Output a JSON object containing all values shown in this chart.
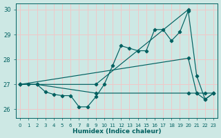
{
  "xlabel": "Humidex (Indice chaleur)",
  "xlim": [
    -0.5,
    23.5
  ],
  "ylim": [
    25.65,
    30.25
  ],
  "yticks": [
    26,
    27,
    28,
    29,
    30
  ],
  "xticks": [
    0,
    1,
    2,
    3,
    4,
    5,
    6,
    7,
    8,
    9,
    10,
    11,
    12,
    13,
    14,
    15,
    16,
    17,
    18,
    19,
    20,
    21,
    22,
    23
  ],
  "background_color": "#cde8e4",
  "grid_color": "#f0c8c8",
  "line_color": "#006060",
  "line1_x": [
    0,
    1,
    2,
    3,
    4,
    5,
    6,
    7,
    8,
    9,
    10,
    11,
    12,
    13,
    14,
    15,
    16,
    17,
    18,
    19,
    20,
    21,
    22,
    23
  ],
  "line1_y": [
    27.0,
    27.0,
    27.0,
    26.7,
    26.6,
    26.55,
    26.55,
    26.1,
    26.1,
    26.5,
    27.0,
    27.75,
    28.55,
    28.45,
    28.35,
    28.35,
    29.2,
    29.2,
    28.75,
    29.1,
    29.95,
    27.35,
    26.4,
    26.65
  ],
  "line2_x": [
    0,
    2,
    9,
    20
  ],
  "line2_y": [
    27.0,
    27.0,
    27.0,
    30.0
  ],
  "line3_x": [
    0,
    2,
    9,
    20,
    21,
    22,
    23
  ],
  "line3_y": [
    27.0,
    27.0,
    26.65,
    26.65,
    26.65,
    26.4,
    26.65
  ],
  "line4_x": [
    0,
    20,
    21,
    22,
    23
  ],
  "line4_y": [
    27.0,
    28.05,
    26.65,
    26.65,
    26.65
  ]
}
